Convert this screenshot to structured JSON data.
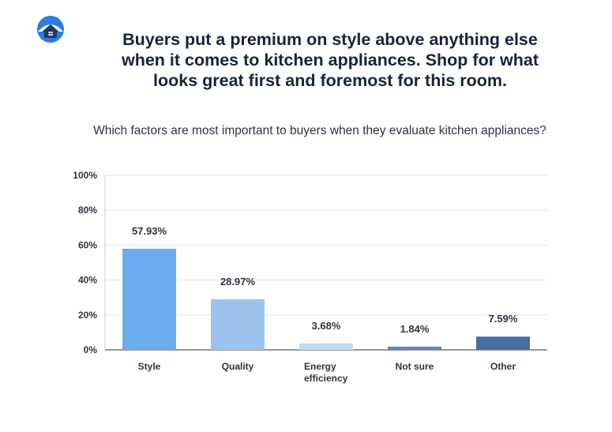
{
  "header": {
    "logo_icon": "house-cloud-logo",
    "headline_lines": [
      "Buyers put a premium on style above anything else",
      "when it comes to kitchen appliances. Shop for what",
      "looks great first and foremost for this room."
    ],
    "question": "Which factors are most important to buyers when they evaluate kitchen appliances?"
  },
  "chart_data": {
    "type": "bar",
    "categories": [
      [
        "Style"
      ],
      [
        "Quality"
      ],
      [
        "Energy",
        "efficiency"
      ],
      [
        "Not sure"
      ],
      [
        "Other"
      ]
    ],
    "values": [
      57.93,
      28.97,
      3.68,
      1.84,
      7.59
    ],
    "value_labels": [
      "57.93%",
      "28.97%",
      "3.68%",
      "1.84%",
      "7.59%"
    ],
    "bar_colors": [
      "#6aabee",
      "#9cc3ee",
      "#c5d9ef",
      "#5b86c4",
      "#466ea3"
    ],
    "yticks": [
      0,
      20,
      40,
      60,
      80,
      100
    ],
    "ytick_labels": [
      "0%",
      "20%",
      "40%",
      "60%",
      "80%",
      "100%"
    ],
    "ylim": [
      0,
      100
    ],
    "grid": true,
    "title": "",
    "xlabel": "",
    "ylabel": ""
  }
}
